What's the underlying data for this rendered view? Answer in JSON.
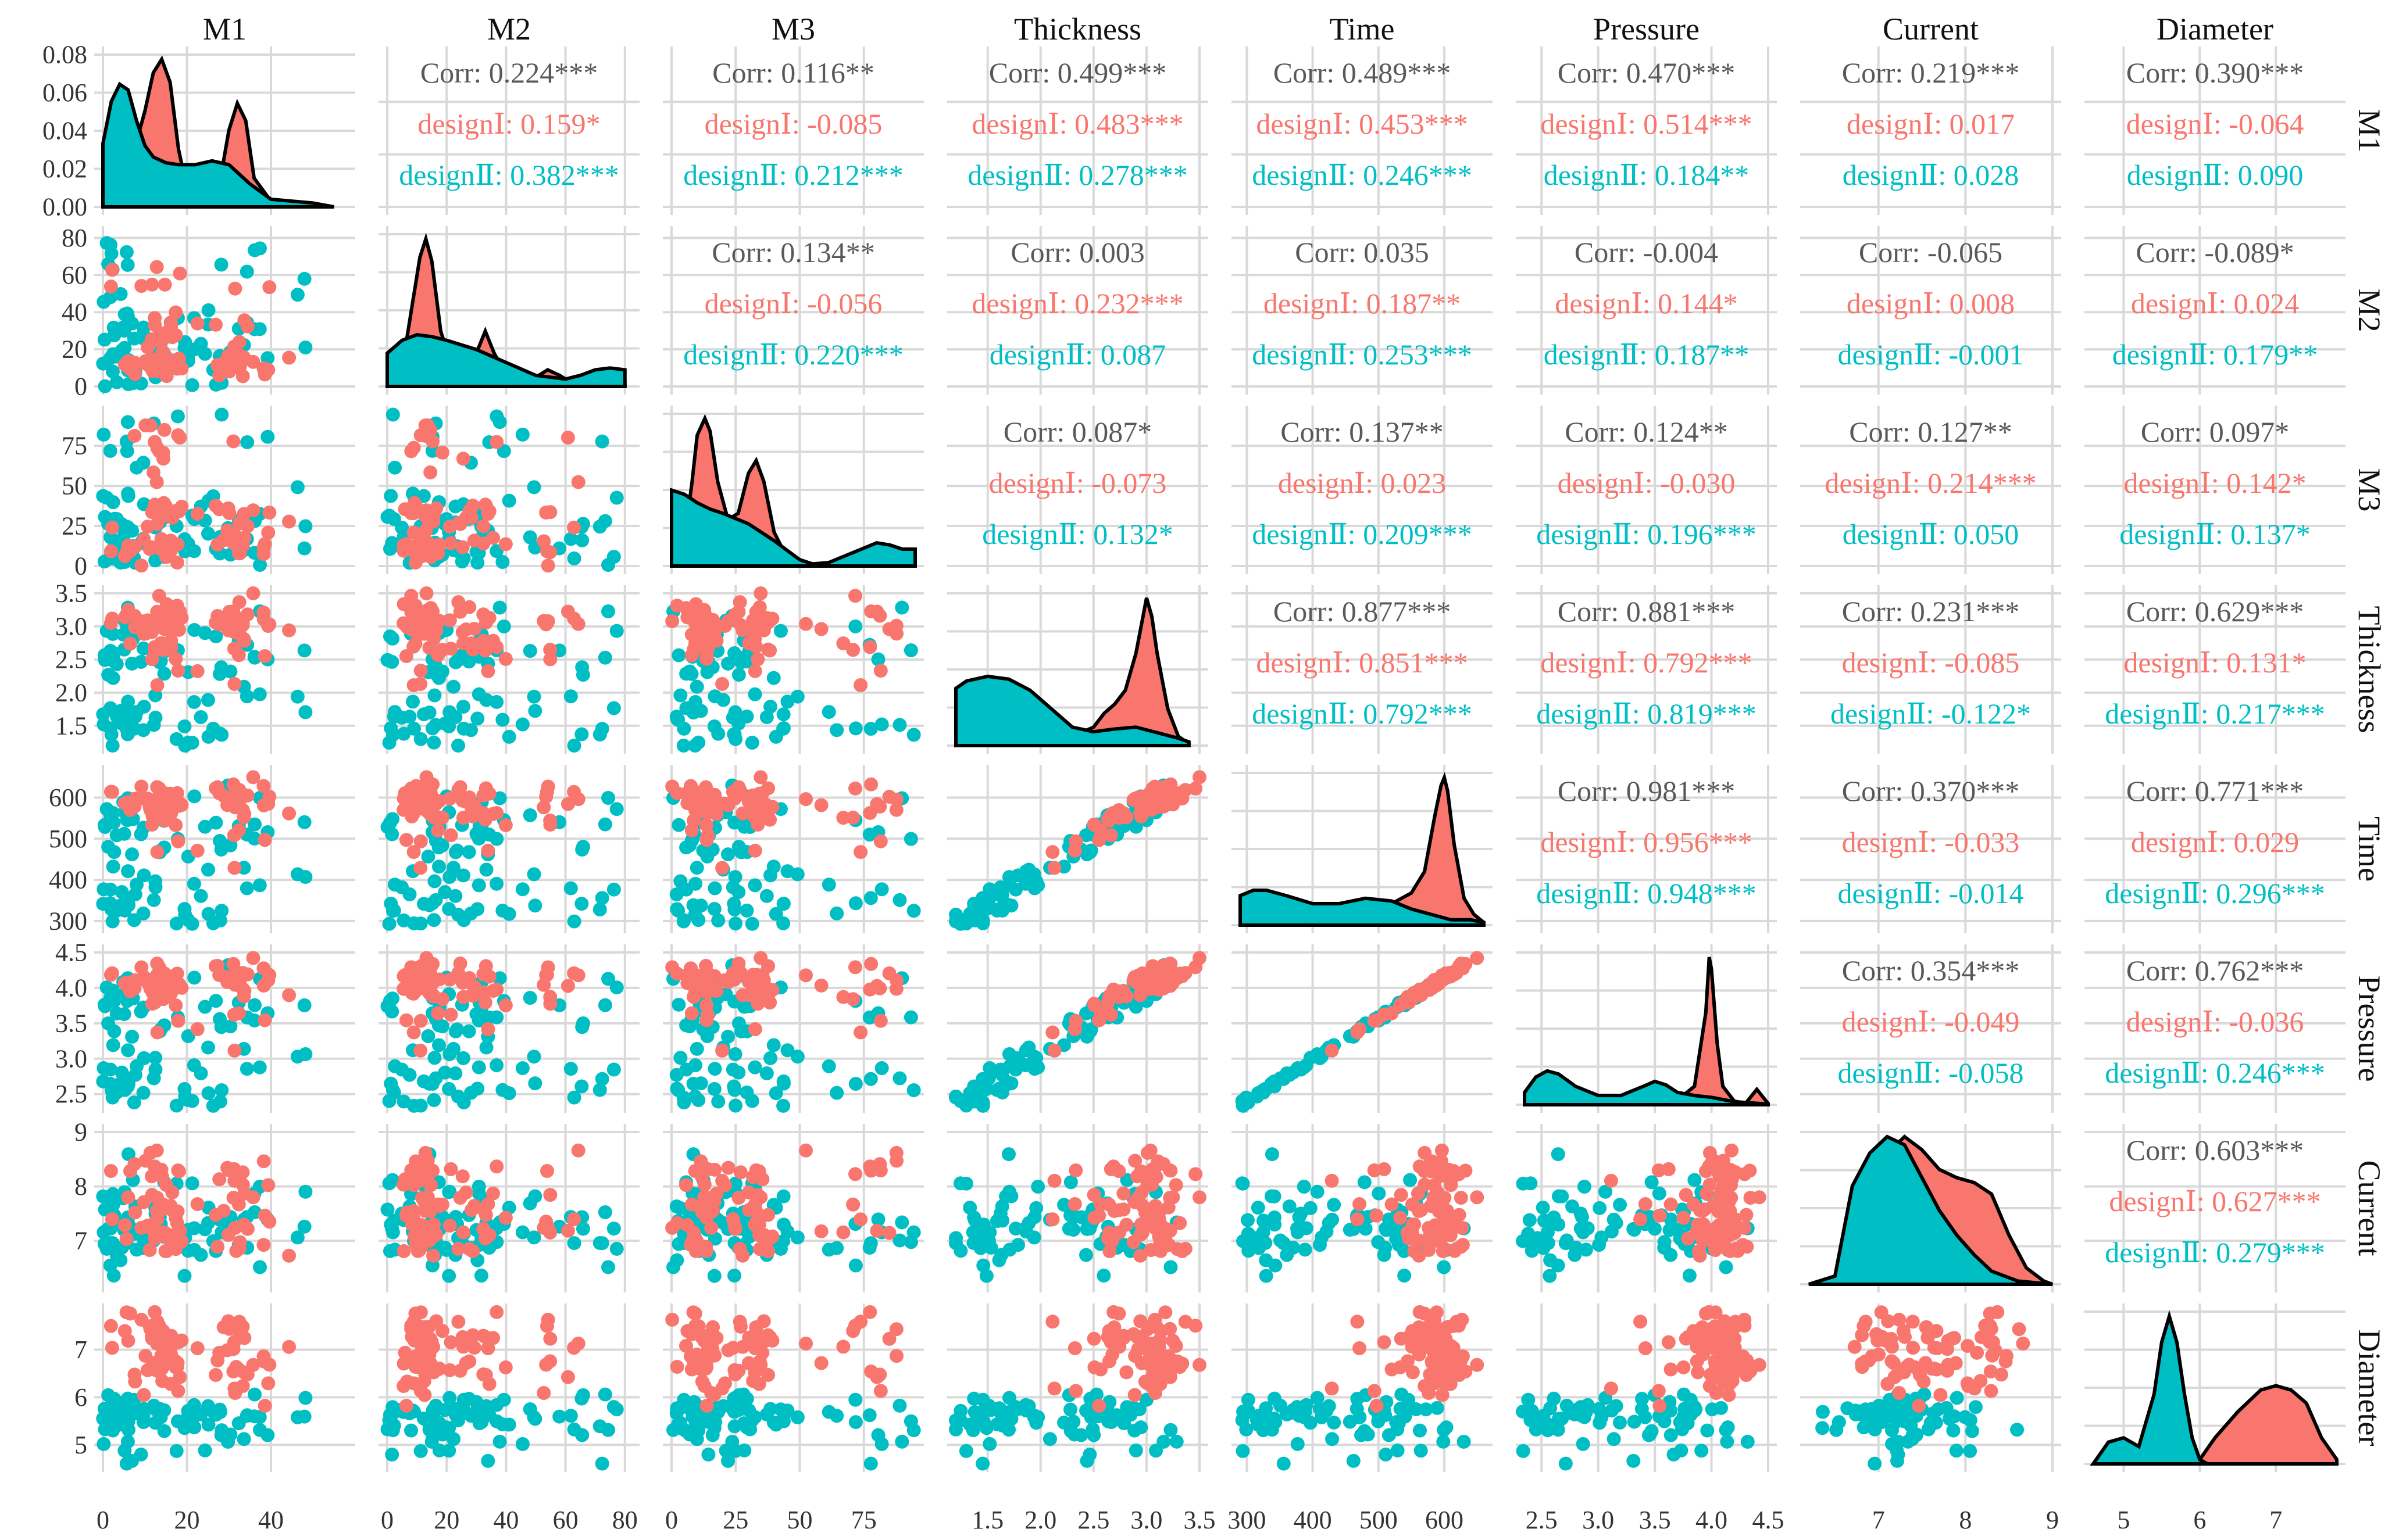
{
  "chart_data": {
    "type": "scatter",
    "title": "",
    "variables": [
      "M1",
      "M2",
      "M3",
      "Thickness",
      "Time",
      "Pressure",
      "Current",
      "Diameter"
    ],
    "groups": [
      {
        "name": "designⅠ",
        "color": "#F8766D"
      },
      {
        "name": "designⅡ",
        "color": "#00BFC4"
      }
    ],
    "colors": {
      "overall": "#595959",
      "outline": "#000000",
      "grid": "#D9D9D9",
      "text": "#111111"
    },
    "corr_label": "Corr",
    "axes": [
      {
        "name": "M1",
        "range": [
          0,
          58
        ],
        "ticks": [
          0,
          20,
          40
        ],
        "tick_labels": [
          "0",
          "20",
          "40"
        ]
      },
      {
        "name": "M2",
        "range": [
          0,
          82
        ],
        "ticks": [
          0,
          20,
          40,
          60,
          80
        ],
        "tick_labels": [
          "0",
          "20",
          "40",
          "60",
          "80"
        ]
      },
      {
        "name": "M3",
        "range": [
          0,
          95
        ],
        "ticks": [
          0,
          25,
          50,
          75
        ],
        "tick_labels": [
          "0",
          "25",
          "50",
          "75"
        ]
      },
      {
        "name": "Thickness",
        "range": [
          1.2,
          3.5
        ],
        "ticks": [
          1.5,
          2.0,
          2.5,
          3.0,
          3.5
        ],
        "tick_labels": [
          "1.5",
          "2.0",
          "2.5",
          "3.0",
          "3.5"
        ]
      },
      {
        "name": "Time",
        "range": [
          290,
          660
        ],
        "ticks": [
          300,
          400,
          500,
          600
        ],
        "tick_labels": [
          "300",
          "400",
          "500",
          "600"
        ]
      },
      {
        "name": "Pressure",
        "range": [
          2.35,
          4.5
        ],
        "ticks": [
          2.5,
          3.0,
          3.5,
          4.0,
          4.5
        ],
        "tick_labels": [
          "2.5",
          "3.0",
          "3.5",
          "4.0",
          "4.5"
        ]
      },
      {
        "name": "Current",
        "range": [
          6.2,
          9.0
        ],
        "ticks": [
          7,
          8,
          9
        ],
        "tick_labels": [
          "7",
          "8",
          "9"
        ]
      },
      {
        "name": "Diameter",
        "range": [
          4.6,
          7.8
        ],
        "ticks": [
          5,
          6,
          7
        ],
        "tick_labels": [
          "5",
          "6",
          "7"
        ]
      }
    ],
    "density_y_axis": {
      "variable": "M1",
      "range": [
        0,
        0.08
      ],
      "ticks": [
        0,
        0.02,
        0.04,
        0.06,
        0.08
      ],
      "tick_labels": [
        "0.00",
        "0.02",
        "0.04",
        "0.06",
        "0.08"
      ]
    },
    "correlations": [
      {
        "row": "M1",
        "col": "M2",
        "corr": "0.224***",
        "g1": "0.159*",
        "g2": "0.382***"
      },
      {
        "row": "M1",
        "col": "M3",
        "corr": "0.116**",
        "g1": "-0.085",
        "g2": "0.212***"
      },
      {
        "row": "M1",
        "col": "Thickness",
        "corr": "0.499***",
        "g1": "0.483***",
        "g2": "0.278***"
      },
      {
        "row": "M1",
        "col": "Time",
        "corr": "0.489***",
        "g1": "0.453***",
        "g2": "0.246***"
      },
      {
        "row": "M1",
        "col": "Pressure",
        "corr": "0.470***",
        "g1": "0.514***",
        "g2": "0.184**"
      },
      {
        "row": "M1",
        "col": "Current",
        "corr": "0.219***",
        "g1": "0.017",
        "g2": "0.028"
      },
      {
        "row": "M1",
        "col": "Diameter",
        "corr": "0.390***",
        "g1": "-0.064",
        "g2": "0.090"
      },
      {
        "row": "M2",
        "col": "M3",
        "corr": "0.134**",
        "g1": "-0.056",
        "g2": "0.220***"
      },
      {
        "row": "M2",
        "col": "Thickness",
        "corr": "0.003",
        "g1": "0.232***",
        "g2": "0.087"
      },
      {
        "row": "M2",
        "col": "Time",
        "corr": "0.035",
        "g1": "0.187**",
        "g2": "0.253***"
      },
      {
        "row": "M2",
        "col": "Pressure",
        "corr": "-0.004",
        "g1": "0.144*",
        "g2": "0.187**"
      },
      {
        "row": "M2",
        "col": "Current",
        "corr": "-0.065",
        "g1": "0.008",
        "g2": "-0.001"
      },
      {
        "row": "M2",
        "col": "Diameter",
        "corr": "-0.089*",
        "g1": "0.024",
        "g2": "0.179**"
      },
      {
        "row": "M3",
        "col": "Thickness",
        "corr": "0.087*",
        "g1": "-0.073",
        "g2": "0.132*"
      },
      {
        "row": "M3",
        "col": "Time",
        "corr": "0.137**",
        "g1": "0.023",
        "g2": "0.209***"
      },
      {
        "row": "M3",
        "col": "Pressure",
        "corr": "0.124**",
        "g1": "-0.030",
        "g2": "0.196***"
      },
      {
        "row": "M3",
        "col": "Current",
        "corr": "0.127**",
        "g1": "0.214***",
        "g2": "0.050"
      },
      {
        "row": "M3",
        "col": "Diameter",
        "corr": "0.097*",
        "g1": "0.142*",
        "g2": "0.137*"
      },
      {
        "row": "Thickness",
        "col": "Time",
        "corr": "0.877***",
        "g1": "0.851***",
        "g2": "0.792***"
      },
      {
        "row": "Thickness",
        "col": "Pressure",
        "corr": "0.881***",
        "g1": "0.792***",
        "g2": "0.819***"
      },
      {
        "row": "Thickness",
        "col": "Current",
        "corr": "0.231***",
        "g1": "-0.085",
        "g2": "-0.122*"
      },
      {
        "row": "Thickness",
        "col": "Diameter",
        "corr": "0.629***",
        "g1": "0.131*",
        "g2": "0.217***"
      },
      {
        "row": "Time",
        "col": "Pressure",
        "corr": "0.981***",
        "g1": "0.956***",
        "g2": "0.948***"
      },
      {
        "row": "Time",
        "col": "Current",
        "corr": "0.370***",
        "g1": "-0.033",
        "g2": "-0.014"
      },
      {
        "row": "Time",
        "col": "Diameter",
        "corr": "0.771***",
        "g1": "0.029",
        "g2": "0.296***"
      },
      {
        "row": "Pressure",
        "col": "Current",
        "corr": "0.354***",
        "g1": "-0.049",
        "g2": "-0.058"
      },
      {
        "row": "Pressure",
        "col": "Diameter",
        "corr": "0.762***",
        "g1": "-0.036",
        "g2": "0.246***"
      },
      {
        "row": "Current",
        "col": "Diameter",
        "corr": "0.603***",
        "g1": "0.627***",
        "g2": "0.279***"
      }
    ],
    "densities": [
      {
        "variable": "M1",
        "g1_x": [
          0,
          5,
          10,
          12,
          14,
          16,
          18,
          20,
          24,
          28,
          30,
          32,
          34,
          36,
          40,
          45,
          50,
          55
        ],
        "g1_y": [
          0.001,
          0.01,
          0.05,
          0.07,
          0.077,
          0.065,
          0.03,
          0.01,
          0.003,
          0.015,
          0.04,
          0.054,
          0.045,
          0.015,
          0.003,
          0.002,
          0.001,
          0
        ],
        "g2_x": [
          0,
          2,
          4,
          6,
          8,
          10,
          12,
          15,
          18,
          22,
          26,
          30,
          35,
          40,
          45,
          50,
          55
        ],
        "g2_y": [
          0.033,
          0.055,
          0.064,
          0.061,
          0.045,
          0.032,
          0.026,
          0.023,
          0.022,
          0.022,
          0.024,
          0.022,
          0.012,
          0.004,
          0.003,
          0.002,
          0
        ]
      },
      {
        "variable": "M2",
        "g1_x": [
          0,
          5,
          8,
          11,
          13,
          15,
          18,
          22,
          27,
          31,
          33,
          36,
          40,
          45,
          50,
          54,
          58,
          62,
          66,
          70,
          75,
          80
        ],
        "g1_y": [
          0.002,
          0.01,
          0.04,
          0.07,
          0.08,
          0.068,
          0.03,
          0.01,
          0.008,
          0.022,
          0.03,
          0.018,
          0.006,
          0.003,
          0.005,
          0.009,
          0.006,
          0.002,
          0.001,
          0.001,
          0.001,
          0.001
        ],
        "g2_x": [
          0,
          5,
          10,
          15,
          20,
          30,
          40,
          50,
          60,
          65,
          70,
          75,
          80
        ],
        "g2_y": [
          0.018,
          0.025,
          0.028,
          0.027,
          0.025,
          0.02,
          0.013,
          0.006,
          0.004,
          0.006,
          0.009,
          0.01,
          0.009
        ]
      },
      {
        "variable": "M3",
        "g1_x": [
          0,
          5,
          8,
          10,
          13,
          15,
          18,
          22,
          26,
          30,
          33,
          36,
          40,
          45,
          55,
          65,
          75,
          85,
          90,
          95
        ],
        "g1_y": [
          0.002,
          0.012,
          0.04,
          0.062,
          0.07,
          0.064,
          0.04,
          0.022,
          0.025,
          0.044,
          0.05,
          0.04,
          0.016,
          0.004,
          0.001,
          0.002,
          0.006,
          0.01,
          0.008,
          0.008
        ],
        "g2_x": [
          0,
          5,
          10,
          15,
          20,
          30,
          40,
          50,
          55,
          60,
          70,
          80,
          85,
          90,
          95
        ],
        "g2_y": [
          0.036,
          0.034,
          0.03,
          0.027,
          0.025,
          0.02,
          0.012,
          0.003,
          0.001,
          0.001,
          0.006,
          0.011,
          0.01,
          0.008,
          0.008
        ]
      },
      {
        "variable": "Thickness",
        "g1_x": [
          1.2,
          1.6,
          2.0,
          2.3,
          2.5,
          2.6,
          2.7,
          2.8,
          2.9,
          2.95,
          3.0,
          3.05,
          3.1,
          3.2,
          3.3,
          3.4
        ],
        "g1_y": [
          0,
          0.01,
          0.03,
          0.1,
          0.2,
          0.35,
          0.45,
          0.6,
          1.0,
          1.3,
          1.6,
          1.4,
          1.0,
          0.4,
          0.1,
          0.02
        ],
        "g2_x": [
          1.2,
          1.3,
          1.5,
          1.7,
          1.9,
          2.1,
          2.3,
          2.5,
          2.7,
          2.9,
          3.1,
          3.3,
          3.4
        ],
        "g2_y": [
          0.62,
          0.7,
          0.75,
          0.72,
          0.6,
          0.4,
          0.2,
          0.15,
          0.18,
          0.2,
          0.14,
          0.08,
          0.04
        ]
      },
      {
        "variable": "Time",
        "g1_x": [
          290,
          400,
          480,
          520,
          550,
          570,
          585,
          595,
          600,
          605,
          615,
          630,
          645,
          660
        ],
        "g1_y": [
          0,
          0.001,
          0.003,
          0.008,
          0.012,
          0.02,
          0.04,
          0.052,
          0.055,
          0.05,
          0.03,
          0.01,
          0.004,
          0.001
        ],
        "g2_x": [
          290,
          310,
          330,
          360,
          400,
          440,
          480,
          520,
          550,
          580,
          610,
          640,
          660
        ],
        "g2_y": [
          0.011,
          0.013,
          0.013,
          0.011,
          0.008,
          0.008,
          0.01,
          0.009,
          0.006,
          0.004,
          0.002,
          0.002,
          0.001
        ]
      },
      {
        "variable": "Pressure",
        "g1_x": [
          2.35,
          3.4,
          3.6,
          3.75,
          3.85,
          3.95,
          3.98,
          4.0,
          4.05,
          4.1,
          4.2,
          4.3,
          4.4,
          4.5
        ],
        "g1_y": [
          0,
          0.01,
          0.05,
          0.15,
          0.3,
          1.5,
          2.4,
          2.2,
          1.0,
          0.3,
          0.06,
          0.02,
          0.25,
          0.02
        ],
        "g2_x": [
          2.35,
          2.45,
          2.55,
          2.65,
          2.8,
          3.0,
          3.2,
          3.4,
          3.5,
          3.6,
          3.7,
          3.85,
          4.0,
          4.2,
          4.5
        ],
        "g2_y": [
          0.2,
          0.45,
          0.55,
          0.5,
          0.3,
          0.15,
          0.15,
          0.3,
          0.38,
          0.32,
          0.2,
          0.15,
          0.12,
          0.05,
          0.01
        ]
      },
      {
        "variable": "Current",
        "g1_x": [
          6.2,
          6.5,
          6.8,
          7.0,
          7.3,
          7.5,
          7.7,
          7.9,
          8.1,
          8.3,
          8.5,
          8.7,
          8.9,
          9.0
        ],
        "g1_y": [
          0,
          0.05,
          0.4,
          0.75,
          0.9,
          0.82,
          0.7,
          0.65,
          0.62,
          0.55,
          0.3,
          0.1,
          0.02,
          0
        ],
        "g2_x": [
          6.2,
          6.5,
          6.7,
          6.9,
          7.1,
          7.3,
          7.5,
          7.7,
          7.9,
          8.1,
          8.3,
          8.6,
          9.0
        ],
        "g2_y": [
          0,
          0.05,
          0.6,
          0.8,
          0.9,
          0.85,
          0.65,
          0.45,
          0.3,
          0.18,
          0.08,
          0.02,
          0
        ]
      },
      {
        "variable": "Diameter",
        "g1_x": [
          4.6,
          5.8,
          6.0,
          6.2,
          6.5,
          6.8,
          7.0,
          7.2,
          7.4,
          7.6,
          7.8
        ],
        "g1_y": [
          0,
          0,
          0.05,
          0.3,
          0.6,
          0.85,
          0.9,
          0.85,
          0.7,
          0.3,
          0.05
        ],
        "g2_x": [
          4.6,
          4.8,
          5.0,
          5.2,
          5.4,
          5.5,
          5.6,
          5.7,
          5.8,
          5.9,
          6.0,
          6.1
        ],
        "g2_y": [
          0,
          0.25,
          0.3,
          0.2,
          0.8,
          1.4,
          1.7,
          1.4,
          0.8,
          0.3,
          0.05,
          0
        ]
      }
    ]
  }
}
